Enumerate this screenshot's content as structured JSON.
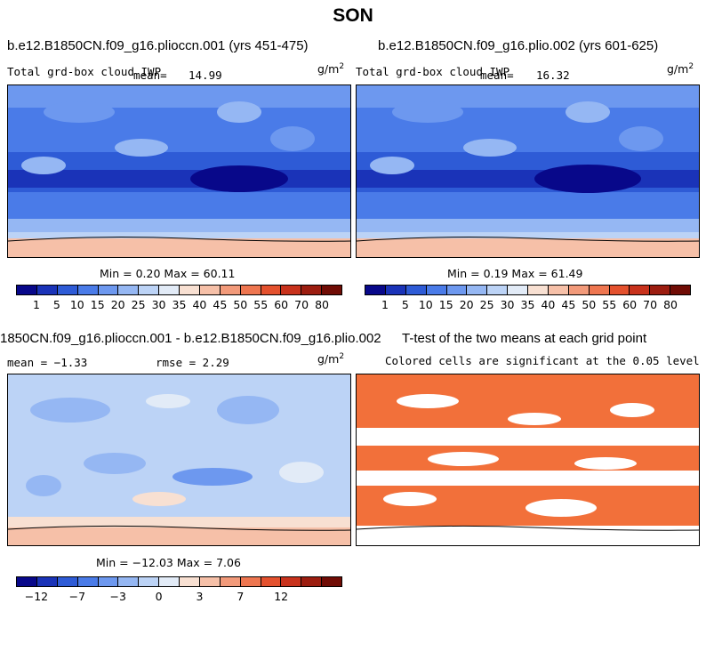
{
  "figure_title": "SON",
  "units_label": "g/m",
  "units_exponent": "2",
  "panels": [
    {
      "id": "p1",
      "title": "b.e12.B1850CN.f09_g16.plioccn.001 (yrs 451-475)",
      "variable": "Total grd-box cloud IWP",
      "mean_label": "mean=",
      "mean_value": "14.99",
      "stats": "Min =   0.20 Max =  60.11"
    },
    {
      "id": "p2",
      "title": "b.e12.B1850CN.f09_g16.plio.002 (yrs 601-625)",
      "variable": "Total grd-box cloud IWP",
      "mean_label": "mean=",
      "mean_value": "16.32",
      "stats": "Min =   0.19 Max =  61.49"
    },
    {
      "id": "p3",
      "title": "1850CN.f09_g16.plioccn.001 - b.e12.B1850CN.f09_g16.plio.002",
      "mean_text": "mean =  −1.33",
      "rmse_text": "rmse =   2.29",
      "stats": "Min = −12.03 Max =   7.06"
    },
    {
      "id": "p4",
      "title": "T-test of the two means at each grid point",
      "subtitle": "Colored cells are significant at the 0.05 level"
    }
  ],
  "colorbar_abs": {
    "colors": [
      "#08088a",
      "#1a33b8",
      "#2e5bd6",
      "#4a7be8",
      "#6d98ef",
      "#95b7f3",
      "#bcd3f6",
      "#e2ebf7",
      "#f8e0d2",
      "#f6c0a8",
      "#f29a7a",
      "#ee7650",
      "#e4512e",
      "#c8321c",
      "#9c1d10",
      "#700c05"
    ],
    "labels": [
      "1",
      "5",
      "10",
      "15",
      "20",
      "25",
      "30",
      "35",
      "40",
      "45",
      "50",
      "55",
      "60",
      "70",
      "80"
    ]
  },
  "colorbar_diff": {
    "colors": [
      "#08088a",
      "#1a33b8",
      "#2e5bd6",
      "#4a7be8",
      "#6d98ef",
      "#95b7f3",
      "#bcd3f6",
      "#e2ebf7",
      "#f8e0d2",
      "#f6c0a8",
      "#f29a7a",
      "#ee7650",
      "#e4512e",
      "#c8321c",
      "#9c1d10",
      "#700c05"
    ],
    "labels": [
      "−12",
      "−7",
      "−3",
      "0",
      "3",
      "7",
      "12"
    ]
  },
  "chart_data": [
    {
      "type": "heatmap",
      "title": "b.e12.B1850CN.f09_g16.plioccn.001 (yrs 451-475)",
      "variable": "Total grd-box cloud IWP",
      "units": "g/m2",
      "mean": 14.99,
      "min": 0.2,
      "max": 60.11,
      "levels": [
        1,
        5,
        10,
        15,
        20,
        25,
        30,
        35,
        40,
        45,
        50,
        55,
        60,
        70,
        80
      ]
    },
    {
      "type": "heatmap",
      "title": "b.e12.B1850CN.f09_g16.plio.002 (yrs 601-625)",
      "variable": "Total grd-box cloud IWP",
      "units": "g/m2",
      "mean": 16.32,
      "min": 0.19,
      "max": 61.49,
      "levels": [
        1,
        5,
        10,
        15,
        20,
        25,
        30,
        35,
        40,
        45,
        50,
        55,
        60,
        70,
        80
      ]
    },
    {
      "type": "heatmap",
      "title": "1850CN.f09_g16.plioccn.001 - b.e12.B1850CN.f09_g16.plio.002",
      "units": "g/m2",
      "mean": -1.33,
      "rmse": 2.29,
      "min": -12.03,
      "max": 7.06,
      "levels": [
        -12,
        -7,
        -3,
        0,
        3,
        7,
        12
      ]
    },
    {
      "type": "heatmap",
      "title": "T-test of the two means at each grid point",
      "subtitle": "Colored cells are significant at the 0.05 level",
      "significance_level": 0.05,
      "significant_color": "#f2703a"
    }
  ]
}
